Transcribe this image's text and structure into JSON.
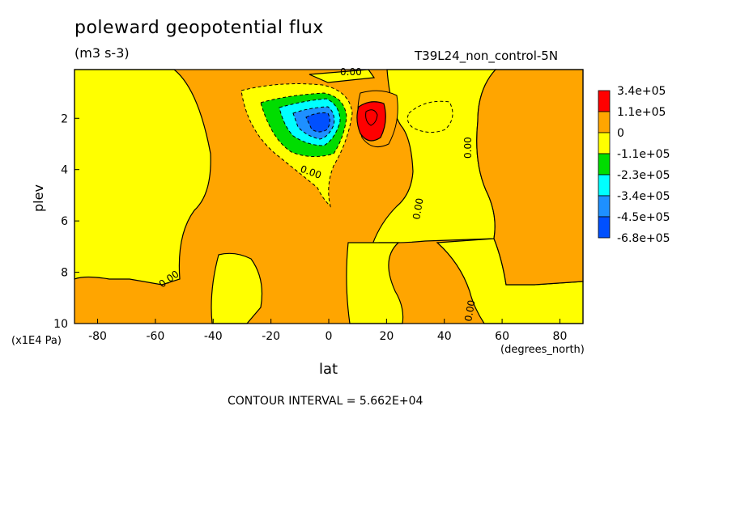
{
  "title": "poleward geopotential flux",
  "units": "(m3 s-3)",
  "run_label": "T39L24_non_control-5N",
  "contour_interval": "CONTOUR INTERVAL = 5.662E+04",
  "chart_data": {
    "type": "heatmap",
    "xlabel": "lat",
    "ylabel": "plev",
    "x_units": "(degrees_north)",
    "y_units": "(x1E4 Pa)",
    "xlim": [
      -88,
      88
    ],
    "ylim": [
      10,
      0.1
    ],
    "x_ticks": [
      -80,
      -60,
      -40,
      -20,
      0,
      20,
      40,
      60,
      80
    ],
    "x_tick_labels": [
      "-80",
      "-60",
      "-40",
      "-20",
      "0",
      "20",
      "40",
      "60",
      "80"
    ],
    "y_ticks": [
      2,
      4,
      6,
      8,
      10
    ],
    "y_tick_labels": [
      "2",
      "4",
      "6",
      "8",
      "10"
    ],
    "contour_labels": [
      "0.00",
      "0.00",
      "0.00",
      "0.00",
      "0.00",
      "0.00"
    ],
    "legend": {
      "placement": "right",
      "levels": [
        "3.4e+05",
        "1.1e+05",
        "0",
        "-1.1e+05",
        "-2.3e+05",
        "-3.4e+05",
        "-4.5e+05",
        "-6.8e+05"
      ],
      "colors": [
        "#ff0000",
        "#ffa500",
        "#ffff00",
        "#00dd00",
        "#00ffff",
        "#1e90ff",
        "#0050ff"
      ]
    },
    "features": [
      {
        "kind": "min",
        "lat": -5,
        "plev": 2.0,
        "approx_value": -680000
      },
      {
        "kind": "max",
        "lat": 14,
        "plev": 1.9,
        "approx_value": 340000
      }
    ]
  },
  "colors": {
    "background": "#ffffff",
    "orange": "#ffa500",
    "yellow": "#ffff00",
    "red": "#ff0000",
    "green": "#00dd00",
    "cyan": "#00ffff",
    "midblue": "#1e90ff",
    "blue": "#0050ff"
  }
}
